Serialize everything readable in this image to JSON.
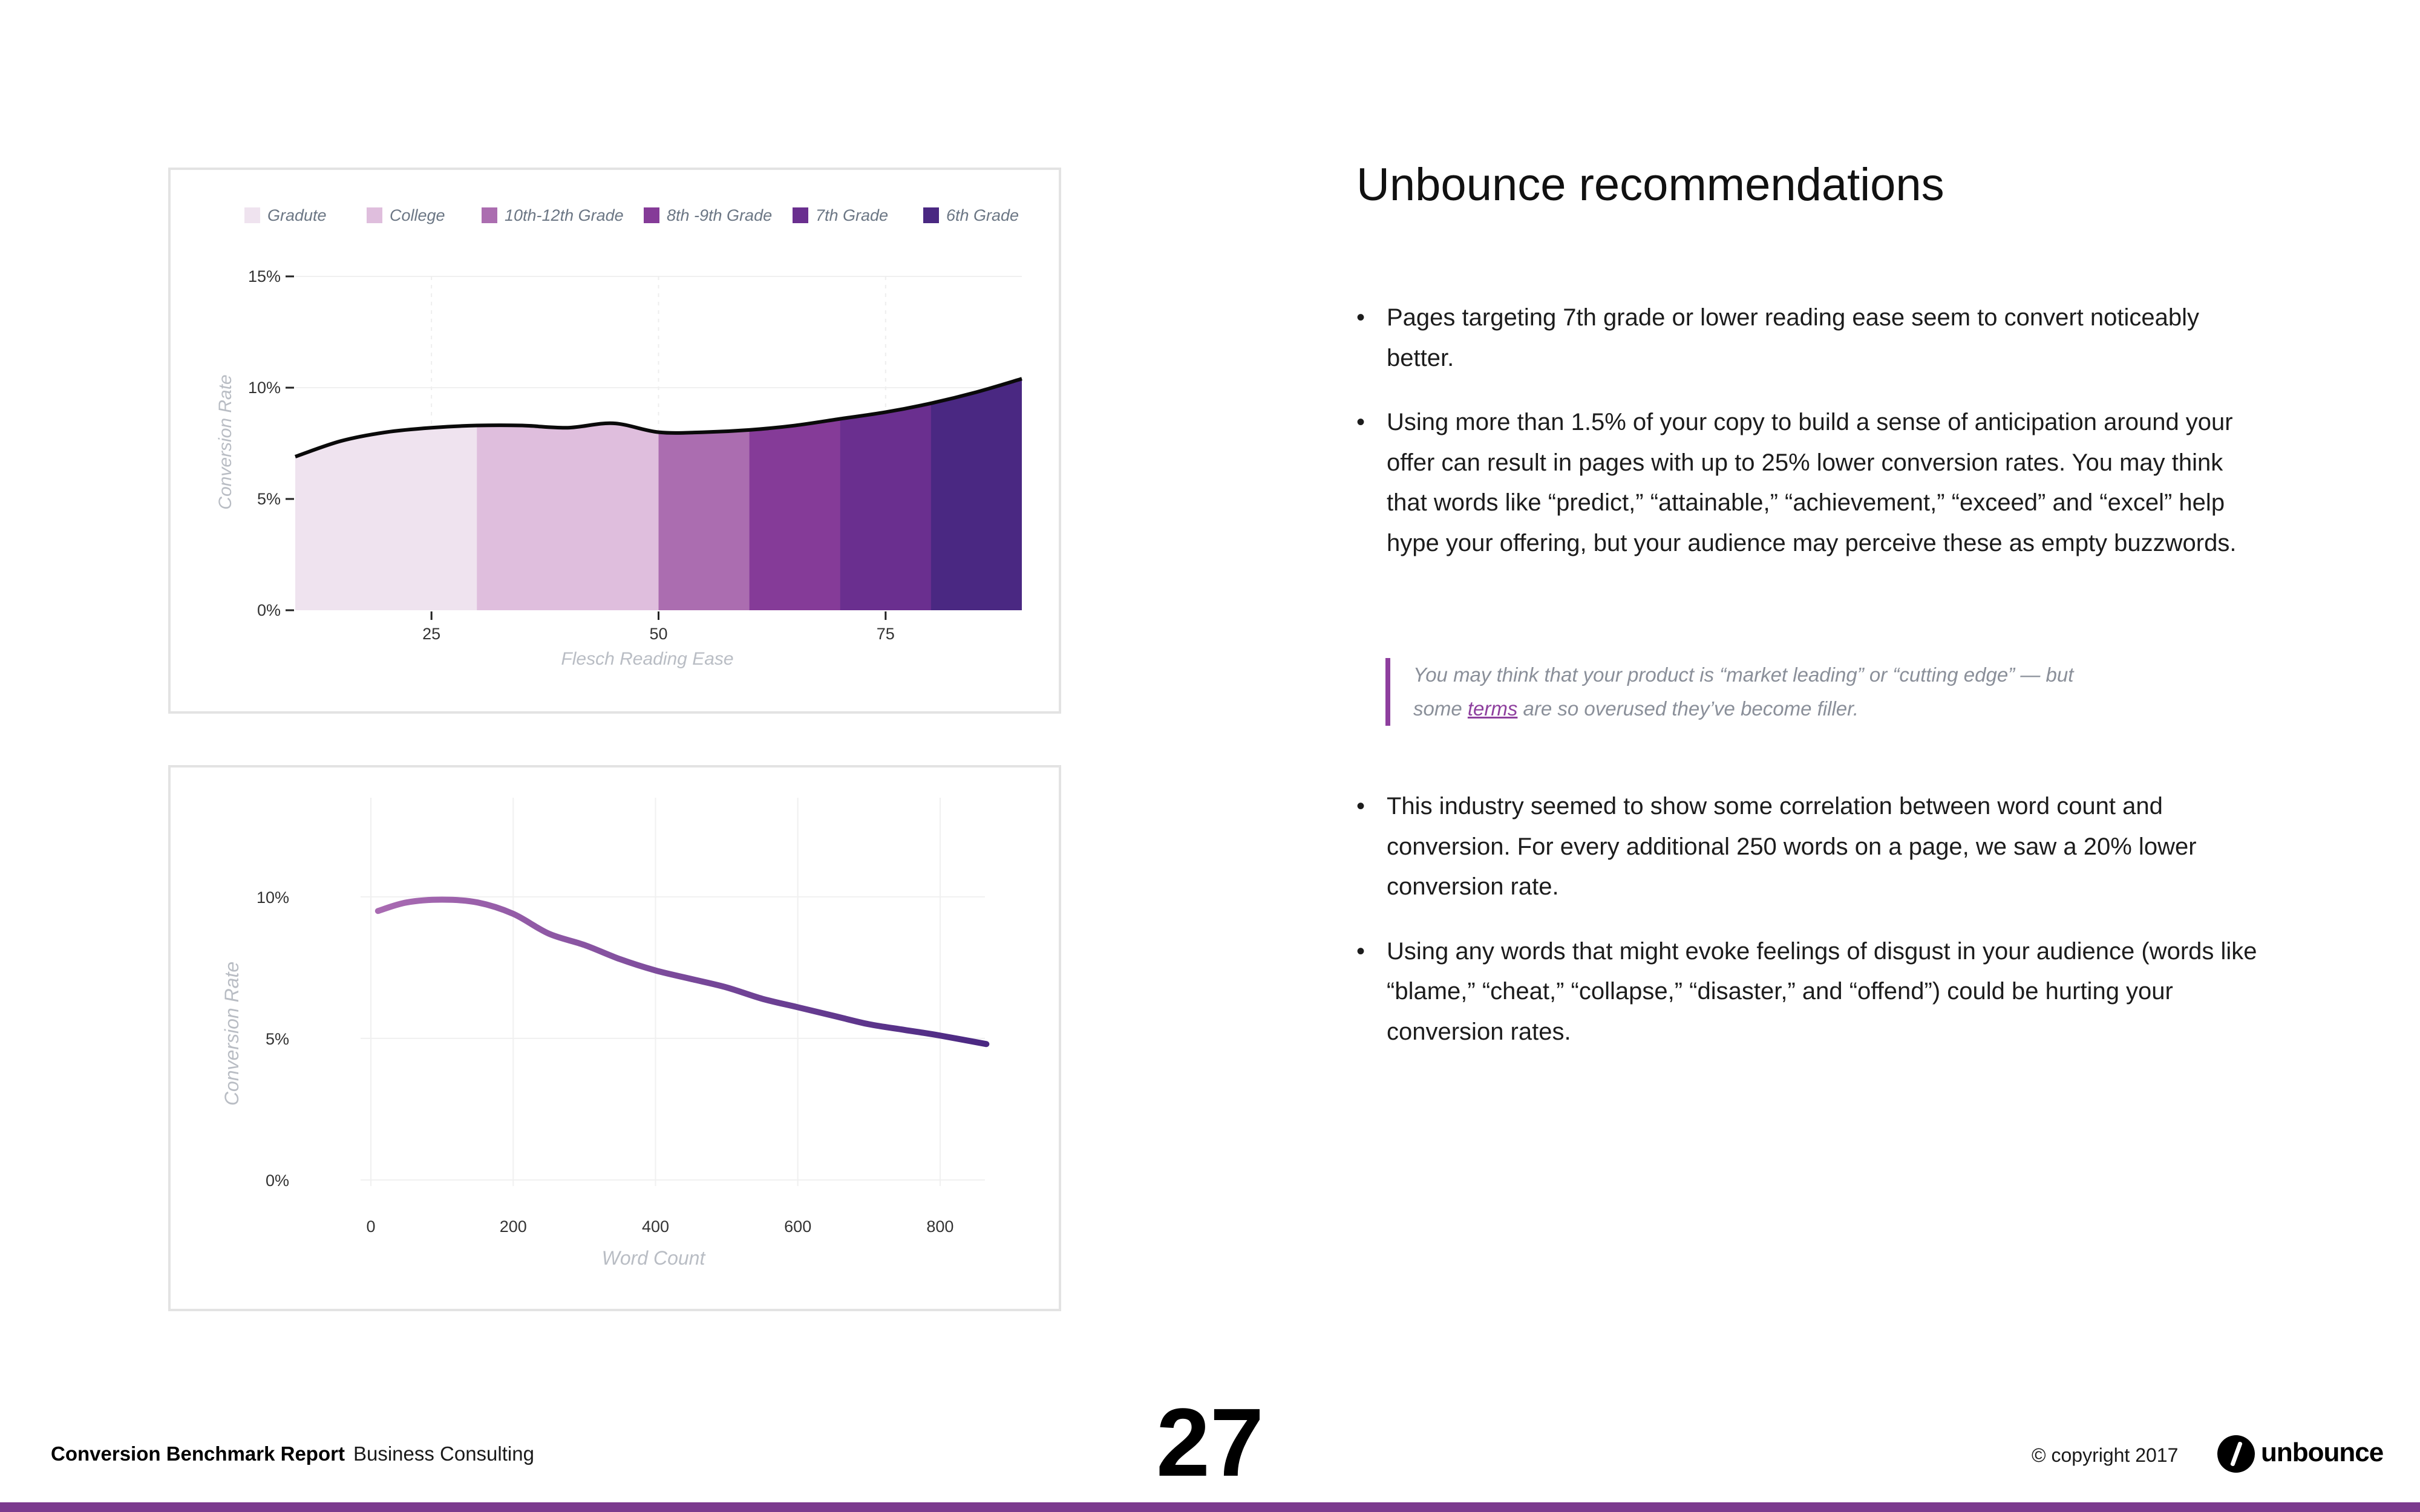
{
  "chart_data": [
    {
      "type": "area",
      "legend": [
        "Gradute",
        "College",
        "10th-12th Grade",
        "8th -9th Grade",
        "7th Grade",
        "6th Grade"
      ],
      "legend_placement": "top",
      "band_colors": [
        "#efe3ef",
        "#dfbedd",
        "#ab6db0",
        "#853b98",
        "#6a2f8f",
        "#4a2882"
      ],
      "bands": [
        {
          "name": "Gradute",
          "x_range": [
            10,
            30
          ]
        },
        {
          "name": "College",
          "x_range": [
            30,
            50
          ]
        },
        {
          "name": "10th-12th Grade",
          "x_range": [
            50,
            60
          ]
        },
        {
          "name": "8th -9th Grade",
          "x_range": [
            60,
            70
          ]
        },
        {
          "name": "7th Grade",
          "x_range": [
            70,
            80
          ]
        },
        {
          "name": "6th Grade",
          "x_range": [
            80,
            90
          ]
        }
      ],
      "x": [
        10,
        15,
        20,
        25,
        30,
        35,
        40,
        45,
        50,
        55,
        60,
        65,
        70,
        75,
        80,
        85,
        90
      ],
      "y": [
        6.9,
        7.6,
        8.0,
        8.2,
        8.3,
        8.3,
        8.2,
        8.4,
        8.0,
        8.0,
        8.1,
        8.3,
        8.6,
        8.9,
        9.3,
        9.8,
        10.4
      ],
      "xticks": [
        25,
        50,
        75
      ],
      "yticks": [
        "0%",
        "5%",
        "10%",
        "15%"
      ],
      "xlim": [
        10,
        90
      ],
      "ylim": [
        0,
        15
      ],
      "xlabel": "Flesch Reading Ease",
      "ylabel": "Conversion Rate",
      "grid": true
    },
    {
      "type": "line",
      "x": [
        10,
        50,
        100,
        150,
        200,
        250,
        300,
        350,
        400,
        450,
        500,
        550,
        600,
        650,
        700,
        750,
        800,
        865
      ],
      "y": [
        9.5,
        9.8,
        9.9,
        9.8,
        9.4,
        8.7,
        8.3,
        7.8,
        7.4,
        7.1,
        6.8,
        6.4,
        6.1,
        5.8,
        5.5,
        5.3,
        5.1,
        4.8
      ],
      "xticks": [
        0,
        200,
        400,
        600,
        800
      ],
      "yticks": [
        "0%",
        "5%",
        "10%"
      ],
      "xlim": [
        -40,
        880
      ],
      "ylim": [
        0,
        13.5
      ],
      "xlabel": "Word Count",
      "ylabel": "Conversion Rate",
      "grid": true,
      "line_color_start": "#a96bb2",
      "line_color_end": "#4a2882"
    }
  ],
  "heading": "Unbounce recommendations",
  "bullets_top": [
    "Pages targeting 7th grade or lower reading ease seem to convert noticeably better.",
    "Using more than 1.5% of your copy to build a sense of anticipation around your offer can result in pages with up to 25% lower conversion rates. You may think that words like “predict,” “attainable,” “achievement,” “exceed” and “excel” help hype your offering, but your audience may perceive these as empty buzzwords."
  ],
  "quote": {
    "line1": "You may think that your product is “market leading” or “cutting edge” — but",
    "pre": "some ",
    "link": "terms",
    "post": " are so overused they’ve become filler."
  },
  "bullets_bottom": [
    "This industry seemed to show some correlation between word count and conversion. For every additional 250 words on a page, we saw a 20% lower conversion rate.",
    "Using any words that might evoke feelings of disgust in your audience (words like “blame,” “cheat,” “collapse,” “disaster,” and “offend”) could be hurting your conversion rates."
  ],
  "bullet_glyph": "•",
  "footer": {
    "report_title": "Conversion Benchmark Report",
    "industry": "Business Consulting",
    "page_number": "27",
    "copyright": "© copyright 2017",
    "brand": "unbounce",
    "bar_color": "#7b3a8e"
  }
}
